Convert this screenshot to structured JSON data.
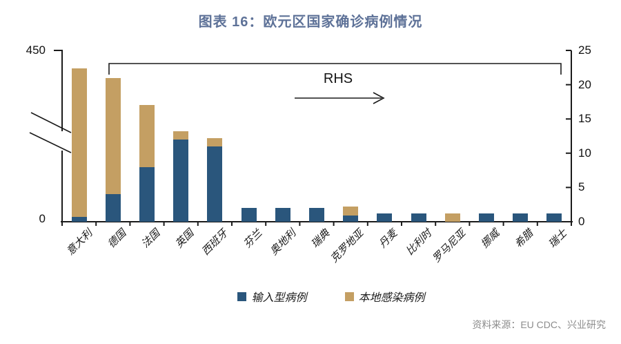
{
  "page": {
    "background": "#FFFFFF"
  },
  "title": "图表 16：欧元区国家确诊病例情况",
  "source_note": "资料来源：EU CDC、兴业研究",
  "colors": {
    "imported_blue": "#2A567C",
    "local_tan": "#C49F63",
    "title_blue": "#5E7298",
    "axis_black": "#1A1A1A",
    "source_gray": "#8C8C8C"
  },
  "legend": {
    "items": [
      {
        "label": "输入型病例",
        "color": "#2A567C"
      },
      {
        "label": "本地感染病例",
        "color": "#C49F63"
      }
    ]
  },
  "chart_data": {
    "type": "bar",
    "stacked": true,
    "title": "图表 16：欧元区国家确诊病例情况",
    "categories": [
      "意大利",
      "德国",
      "法国",
      "英国",
      "西班牙",
      "芬兰",
      "奥地利",
      "瑞典",
      "克罗地亚",
      "丹麦",
      "比利时",
      "罗马尼亚",
      "挪威",
      "希腊",
      "瑞士"
    ],
    "category_slugs": [
      "italy",
      "germany",
      "france",
      "uk",
      "spain",
      "finland",
      "austria",
      "sweden",
      "croatia",
      "denmark",
      "belgium",
      "romania",
      "norway",
      "greece",
      "switzerland"
    ],
    "series": [
      {
        "name": "输入型病例",
        "color": "#2A567C",
        "axis": "RHS",
        "values": [
          5,
          4,
          8,
          12,
          11,
          2,
          2,
          2,
          0.9,
          1.2,
          1.2,
          0,
          1.2,
          1.2,
          1.2
        ]
      },
      {
        "name": "本地感染病例",
        "color": "#C49F63",
        "axis": "RHS",
        "values": [
          415,
          17,
          9,
          1.2,
          1.2,
          0,
          0,
          0,
          1.3,
          0,
          0,
          1.2,
          0,
          0,
          0
        ]
      }
    ],
    "left_axis": {
      "label_top": "450",
      "label_bottom": "0",
      "min": 0,
      "max": 450,
      "has_break": true,
      "applies_to": "意大利"
    },
    "right_axis": {
      "tick_labels": [
        "25",
        "20",
        "15",
        "10",
        "5",
        "0"
      ],
      "min": 0,
      "max": 25,
      "applies_to": "德国 through 瑞士"
    },
    "annotation": {
      "text": "RHS",
      "arrow_direction": "right",
      "bracket_covers": "德国 to 瑞士"
    },
    "legend_position": "bottom",
    "grid": false,
    "lhs_display": {
      "total_height_frac": 0.895,
      "imported_height_frac": 0.028
    }
  }
}
